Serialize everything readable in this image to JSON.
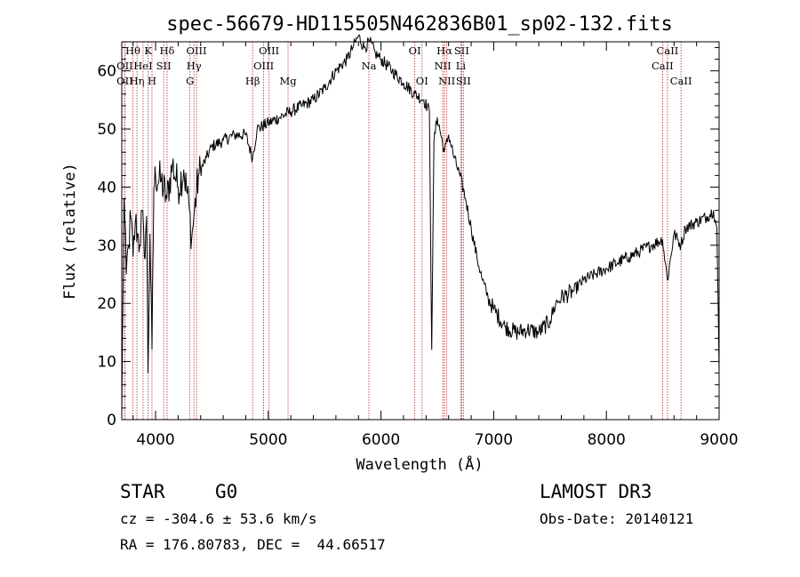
{
  "chart_data": {
    "type": "line",
    "title": "spec-56679-HD115505N462836B01_sp02-132.fits",
    "xlabel": "Wavelength (Å)",
    "ylabel": "Flux (relative)",
    "xlim": [
      3700,
      9000
    ],
    "ylim": [
      0,
      65
    ],
    "xticks": [
      4000,
      5000,
      6000,
      7000,
      8000,
      9000
    ],
    "yticks": [
      0,
      10,
      20,
      30,
      40,
      50,
      60
    ],
    "grid": false,
    "series": [
      {
        "name": "spectrum",
        "x": [
          3700,
          3720,
          3740,
          3760,
          3780,
          3800,
          3820,
          3840,
          3860,
          3880,
          3900,
          3920,
          3933,
          3950,
          3968,
          3985,
          4000,
          4050,
          4100,
          4150,
          4200,
          4250,
          4300,
          4320,
          4340,
          4380,
          4450,
          4500,
          4600,
          4700,
          4800,
          4861,
          4900,
          5000,
          5100,
          5200,
          5300,
          5400,
          5500,
          5600,
          5700,
          5750,
          5800,
          5850,
          5900,
          5950,
          6000,
          6100,
          6200,
          6300,
          6380,
          6430,
          6450,
          6470,
          6500,
          6563,
          6600,
          6650,
          6700,
          6750,
          6800,
          6850,
          6900,
          6950,
          7000,
          7100,
          7200,
          7300,
          7400,
          7500,
          7550,
          7600,
          7700,
          7800,
          7900,
          8000,
          8100,
          8200,
          8300,
          8400,
          8498,
          8542,
          8600,
          8662,
          8700,
          8800,
          8900,
          8950,
          8980,
          9000
        ],
        "values": [
          1,
          38,
          25,
          30,
          35,
          28,
          34,
          32,
          30,
          36,
          28,
          35,
          8,
          32,
          12,
          40,
          42,
          41,
          38,
          44,
          40,
          43,
          36,
          31,
          35,
          42,
          45,
          47,
          48,
          49,
          49,
          45,
          50,
          51,
          52,
          53,
          54,
          55,
          57,
          60,
          62,
          64,
          66,
          64,
          65,
          63,
          62,
          60,
          58,
          56,
          55,
          53,
          12,
          48,
          52,
          46,
          49,
          45,
          42,
          38,
          33,
          28,
          24,
          21,
          19,
          16,
          15,
          15.5,
          15,
          17,
          20,
          21,
          22,
          24,
          25,
          26,
          27,
          28,
          29,
          30,
          31,
          24,
          32,
          30,
          33,
          34,
          35,
          36,
          33,
          8
        ]
      }
    ],
    "lines": [
      {
        "label": "Hθ",
        "x": 3798,
        "row": 1
      },
      {
        "label": "OII",
        "x": 3727,
        "row": 2
      },
      {
        "label": "OII",
        "x": 3727,
        "row": 3
      },
      {
        "label": "Hη",
        "x": 3835,
        "row": 3
      },
      {
        "label": "HeI",
        "x": 3889,
        "row": 2
      },
      {
        "label": "K",
        "x": 3934,
        "row": 1
      },
      {
        "label": "SII",
        "x": 4072,
        "row": 2
      },
      {
        "label": "H",
        "x": 3968,
        "row": 3
      },
      {
        "label": "Hδ",
        "x": 4102,
        "row": 1
      },
      {
        "label": "OIII",
        "x": 4363,
        "row": 1
      },
      {
        "label": "Hγ",
        "x": 4340,
        "row": 2
      },
      {
        "label": "G",
        "x": 4305,
        "row": 3
      },
      {
        "label": "Hβ",
        "x": 4861,
        "row": 3
      },
      {
        "label": "OIII",
        "x": 5007,
        "row": 1
      },
      {
        "label": "OIII",
        "x": 4959,
        "row": 2
      },
      {
        "label": "Mg",
        "x": 5175,
        "row": 3
      },
      {
        "label": "Na",
        "x": 5893,
        "row": 2
      },
      {
        "label": "OI",
        "x": 6300,
        "row": 1
      },
      {
        "label": "OI",
        "x": 6364,
        "row": 3
      },
      {
        "label": "Hα",
        "x": 6563,
        "row": 1
      },
      {
        "label": "SII",
        "x": 6716,
        "row": 1
      },
      {
        "label": "NII",
        "x": 6548,
        "row": 2
      },
      {
        "label": "Li",
        "x": 6708,
        "row": 2
      },
      {
        "label": "NII",
        "x": 6584,
        "row": 3
      },
      {
        "label": "SII",
        "x": 6731,
        "row": 3
      },
      {
        "label": "CaII",
        "x": 8542,
        "row": 1
      },
      {
        "label": "CaII",
        "x": 8498,
        "row": 2
      },
      {
        "label": "CaII",
        "x": 8662,
        "row": 3
      }
    ],
    "colors": {
      "spectrum": "#000000",
      "lines": "#b22222"
    }
  },
  "info": {
    "object_class": "STAR",
    "subclass": "G0",
    "survey": "LAMOST DR3",
    "redshift": "cz = -304.6 ± 53.6 km/s",
    "obs_date": "Obs-Date: 20140121",
    "coords": "RA = 176.80783, DEC =  44.66517"
  }
}
